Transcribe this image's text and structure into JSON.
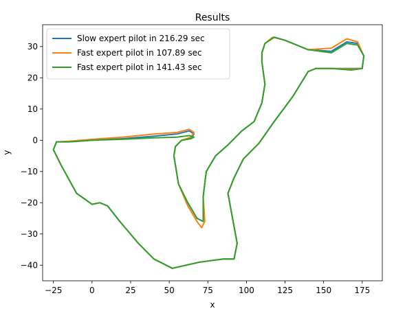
{
  "chart_data": {
    "type": "line",
    "title": "Results",
    "xlabel": "x",
    "ylabel": "y",
    "xlim": [
      -32,
      188
    ],
    "ylim": [
      -45,
      37
    ],
    "xticks": [
      -25,
      0,
      25,
      50,
      75,
      100,
      125,
      150,
      175
    ],
    "yticks": [
      -40,
      -30,
      -20,
      -10,
      0,
      10,
      20,
      30
    ],
    "grid": false,
    "legend_position": "upper-left",
    "series": [
      {
        "name": "Slow expert pilot in 216.29 sec",
        "color": "#1f77b4",
        "x": [
          110,
          112,
          118,
          125,
          140,
          155,
          165,
          172,
          176,
          175,
          168,
          155,
          145,
          140,
          130,
          118,
          108,
          98,
          92,
          88,
          91,
          94,
          92,
          85,
          70,
          52,
          40,
          30,
          18,
          10,
          5,
          0,
          -10,
          -20,
          -25,
          -23,
          -15,
          0,
          20,
          40,
          55,
          63,
          66,
          64,
          58,
          54,
          53,
          56,
          62,
          68,
          72,
          72,
          74,
          80,
          88,
          97,
          105,
          110,
          112,
          110,
          110
        ],
        "y": [
          28,
          31,
          33,
          32,
          29,
          28.5,
          31.5,
          31,
          27,
          23,
          23,
          23,
          23,
          22,
          14,
          6,
          -1,
          -6,
          -12,
          -17,
          -25,
          -33,
          -38,
          -38,
          -39,
          -41,
          -38,
          -33,
          -26,
          -21,
          -20,
          -20.5,
          -17,
          -8,
          -3,
          -0.5,
          -0.5,
          0,
          0.5,
          1.3,
          2,
          3,
          2,
          0.5,
          0,
          -2,
          -5,
          -14,
          -20,
          -25,
          -26,
          -18,
          -10,
          -5,
          -1.5,
          3,
          6,
          12,
          18,
          25,
          28
        ]
      },
      {
        "name": "Fast expert pilot in 107.89 sec",
        "color": "#ff7f0e",
        "x": [
          110,
          112,
          117,
          125,
          140,
          155,
          165,
          172,
          176,
          175,
          168,
          155,
          145,
          140,
          130,
          118,
          108,
          98,
          92,
          88,
          91,
          94,
          92,
          85,
          70,
          52,
          40,
          30,
          18,
          10,
          5,
          0,
          -10,
          -20,
          -25,
          -23,
          -15,
          0,
          20,
          40,
          55,
          63,
          66,
          64,
          58,
          54,
          53,
          56,
          62,
          68,
          71,
          73,
          72,
          74,
          80,
          88,
          97,
          105,
          110,
          112,
          110,
          110
        ],
        "y": [
          28,
          31,
          33,
          32,
          29,
          29.5,
          32.5,
          31.5,
          27,
          23,
          22.8,
          23,
          23,
          22,
          14,
          6,
          -1,
          -6,
          -12,
          -17,
          -25,
          -33,
          -38,
          -38,
          -39,
          -41,
          -38,
          -33,
          -26,
          -21,
          -20,
          -20.5,
          -17,
          -8,
          -3,
          -0.5,
          -0.3,
          0.3,
          1,
          2,
          2.5,
          3.5,
          2.5,
          1,
          0,
          -2,
          -5,
          -14,
          -21,
          -26,
          -28,
          -26,
          -18,
          -10,
          -5,
          -1.5,
          3,
          6,
          12,
          18,
          25,
          28
        ]
      },
      {
        "name": "Fast expert pilot in 141.43 sec",
        "color": "#2ca02c",
        "x": [
          110,
          112,
          118,
          125,
          140,
          155,
          165,
          172,
          176,
          175,
          168,
          155,
          145,
          140,
          130,
          118,
          108,
          98,
          92,
          88,
          91,
          94,
          92,
          85,
          70,
          52,
          40,
          30,
          18,
          10,
          5,
          0,
          -10,
          -20,
          -25,
          -23,
          -15,
          0,
          20,
          40,
          55,
          63,
          66,
          64,
          58,
          54,
          53,
          56,
          62,
          68,
          72,
          72,
          74,
          80,
          88,
          97,
          105,
          110,
          112,
          110,
          110
        ],
        "y": [
          28,
          31,
          33,
          32,
          29,
          28,
          31,
          30.5,
          27,
          23,
          22.5,
          23,
          23,
          22,
          14,
          6,
          -1,
          -6,
          -12,
          -17,
          -25,
          -33,
          -38,
          -38,
          -39,
          -41,
          -38,
          -33,
          -26,
          -21,
          -20,
          -20.5,
          -17,
          -8,
          -3,
          -0.5,
          -0.5,
          0,
          0.3,
          0.8,
          1,
          1.5,
          1,
          0.5,
          0,
          -2,
          -5,
          -14,
          -20,
          -25,
          -26,
          -18,
          -10,
          -5,
          -1.5,
          3,
          6,
          12,
          18,
          25,
          28
        ]
      }
    ]
  }
}
